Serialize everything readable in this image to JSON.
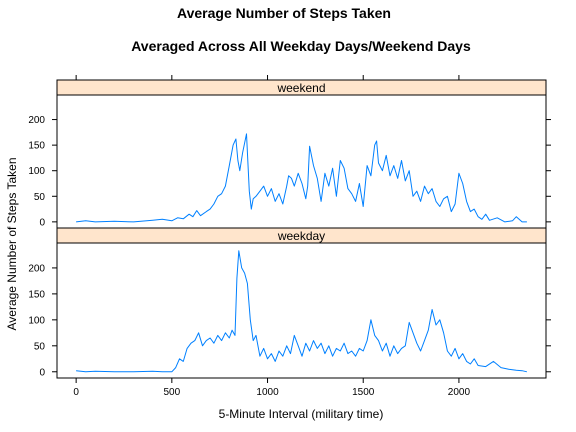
{
  "chart_data": {
    "type": "line",
    "title": "Average Number of Steps Taken",
    "subtitle": "Averaged Across All Weekday Days/Weekend Days",
    "xlabel": "5-Minute Interval (military time)",
    "ylabel": "Average Number of Steps Taken",
    "xlim": [
      -100,
      2455
    ],
    "ylim": [
      -12,
      248
    ],
    "xticks": [
      0,
      500,
      1000,
      1500,
      2000
    ],
    "yticks": [
      0,
      50,
      100,
      150,
      200
    ],
    "grid": false,
    "line_color": "#0080ff",
    "strip_color": "#ffe5cc",
    "panels": [
      {
        "name": "weekend",
        "series": [
          {
            "x": [
              0,
              50,
              100,
              200,
              300,
              400,
              450,
              500,
              530,
              560,
              590,
              610,
              630,
              650,
              680,
              700,
              720,
              740,
              760,
              780,
              800,
              820,
              835,
              845,
              855,
              870,
              890,
              905,
              915,
              925,
              940,
              960,
              980,
              1000,
              1020,
              1040,
              1060,
              1080,
              1100,
              1110,
              1125,
              1140,
              1160,
              1180,
              1200,
              1210,
              1220,
              1240,
              1260,
              1280,
              1300,
              1320,
              1340,
              1360,
              1380,
              1400,
              1420,
              1440,
              1460,
              1480,
              1500,
              1520,
              1540,
              1560,
              1570,
              1580,
              1600,
              1620,
              1640,
              1660,
              1680,
              1700,
              1720,
              1740,
              1760,
              1780,
              1800,
              1820,
              1840,
              1860,
              1880,
              1900,
              1920,
              1940,
              1960,
              1980,
              2000,
              2020,
              2040,
              2060,
              2080,
              2100,
              2120,
              2140,
              2160,
              2200,
              2240,
              2280,
              2300,
              2330,
              2355
            ],
            "y": [
              0,
              2,
              0,
              1,
              0,
              3,
              5,
              2,
              8,
              6,
              15,
              10,
              22,
              12,
              20,
              25,
              35,
              50,
              55,
              70,
              110,
              150,
              162,
              120,
              100,
              135,
              172,
              60,
              25,
              45,
              50,
              60,
              70,
              50,
              65,
              40,
              55,
              35,
              70,
              90,
              85,
              70,
              95,
              75,
              45,
              70,
              148,
              110,
              85,
              40,
              95,
              70,
              105,
              50,
              120,
              105,
              65,
              55,
              40,
              75,
              30,
              110,
              90,
              150,
              158,
              115,
              100,
              130,
              90,
              110,
              85,
              120,
              80,
              100,
              50,
              60,
              40,
              70,
              55,
              65,
              40,
              30,
              45,
              50,
              20,
              35,
              95,
              75,
              40,
              20,
              25,
              10,
              5,
              15,
              3,
              8,
              0,
              2,
              10,
              0,
              0
            ]
          }
        ]
      },
      {
        "name": "weekday",
        "series": [
          {
            "x": [
              0,
              50,
              100,
              200,
              300,
              400,
              450,
              500,
              520,
              540,
              560,
              580,
              600,
              620,
              640,
              660,
              680,
              700,
              720,
              740,
              760,
              780,
              800,
              815,
              830,
              840,
              850,
              865,
              880,
              895,
              910,
              925,
              940,
              960,
              980,
              1000,
              1020,
              1040,
              1060,
              1080,
              1100,
              1120,
              1140,
              1160,
              1180,
              1200,
              1220,
              1240,
              1260,
              1280,
              1300,
              1320,
              1340,
              1360,
              1380,
              1400,
              1420,
              1440,
              1460,
              1480,
              1500,
              1520,
              1540,
              1560,
              1580,
              1600,
              1620,
              1640,
              1660,
              1680,
              1700,
              1720,
              1740,
              1760,
              1780,
              1800,
              1820,
              1840,
              1860,
              1880,
              1900,
              1920,
              1940,
              1960,
              1980,
              2000,
              2020,
              2040,
              2060,
              2080,
              2100,
              2140,
              2180,
              2220,
              2260,
              2300,
              2330,
              2355
            ],
            "y": [
              2,
              0,
              1,
              0,
              0,
              1,
              0,
              0,
              8,
              25,
              20,
              45,
              55,
              60,
              75,
              50,
              60,
              65,
              55,
              70,
              60,
              75,
              65,
              80,
              70,
              180,
              233,
              200,
              190,
              170,
              100,
              60,
              70,
              30,
              45,
              25,
              35,
              20,
              40,
              30,
              50,
              35,
              70,
              50,
              30,
              55,
              40,
              60,
              45,
              55,
              35,
              50,
              30,
              45,
              40,
              55,
              35,
              40,
              30,
              45,
              40,
              60,
              100,
              70,
              60,
              40,
              55,
              30,
              50,
              35,
              45,
              50,
              95,
              75,
              55,
              40,
              60,
              80,
              120,
              90,
              100,
              75,
              40,
              30,
              45,
              25,
              35,
              20,
              15,
              25,
              12,
              10,
              20,
              8,
              5,
              3,
              2,
              0
            ]
          }
        ]
      }
    ]
  }
}
